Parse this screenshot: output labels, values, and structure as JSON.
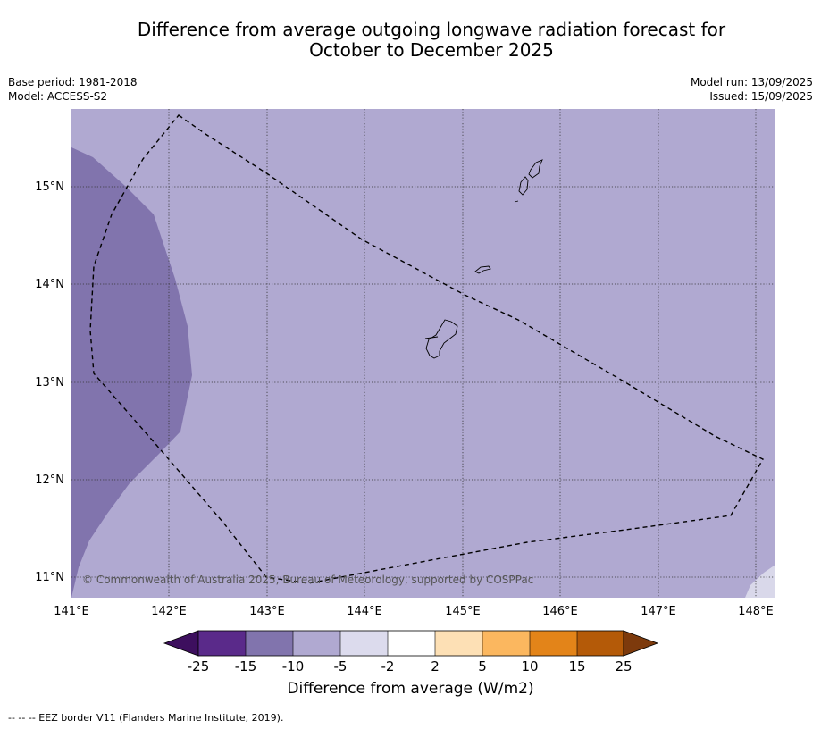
{
  "title_line1": "Difference from average outgoing longwave radiation forecast for",
  "title_line2": "October to December 2025",
  "meta_left": {
    "base_period": "Base period: 1981-2018",
    "model": "Model: ACCESS-S2"
  },
  "meta_right": {
    "model_run": "Model run: 13/09/2025",
    "issued": "Issued: 15/09/2025"
  },
  "map": {
    "lon_labels": [
      "141°E",
      "142°E",
      "143°E",
      "144°E",
      "145°E",
      "146°E",
      "147°E",
      "148°E"
    ],
    "lat_labels": [
      "15°N",
      "14°N",
      "13°N",
      "12°N",
      "11°N"
    ],
    "copyright": "© Commonwealth of Australia 2025, Bureau of Meteorology, supported by COSPPac",
    "colors": {
      "background_class": "#b0a9d1",
      "strong_class": "#8174ad",
      "weak_class": "#d9d8ea"
    }
  },
  "colorbar": {
    "title": "Difference from average (W/m2)",
    "tick_labels": [
      "-25",
      "-15",
      "-10",
      "-5",
      "-2",
      "2",
      "5",
      "10",
      "15",
      "25"
    ],
    "colors": [
      "#3d0f5e",
      "#5a2a8a",
      "#8174ad",
      "#b0a9d1",
      "#dcdbed",
      "#ffffff",
      "#fde0b5",
      "#fbb75f",
      "#e38419",
      "#b45a08",
      "#7d3a0c"
    ]
  },
  "footer": "--  --  -- EEZ border V11 (Flanders Marine Institute, 2019)."
}
